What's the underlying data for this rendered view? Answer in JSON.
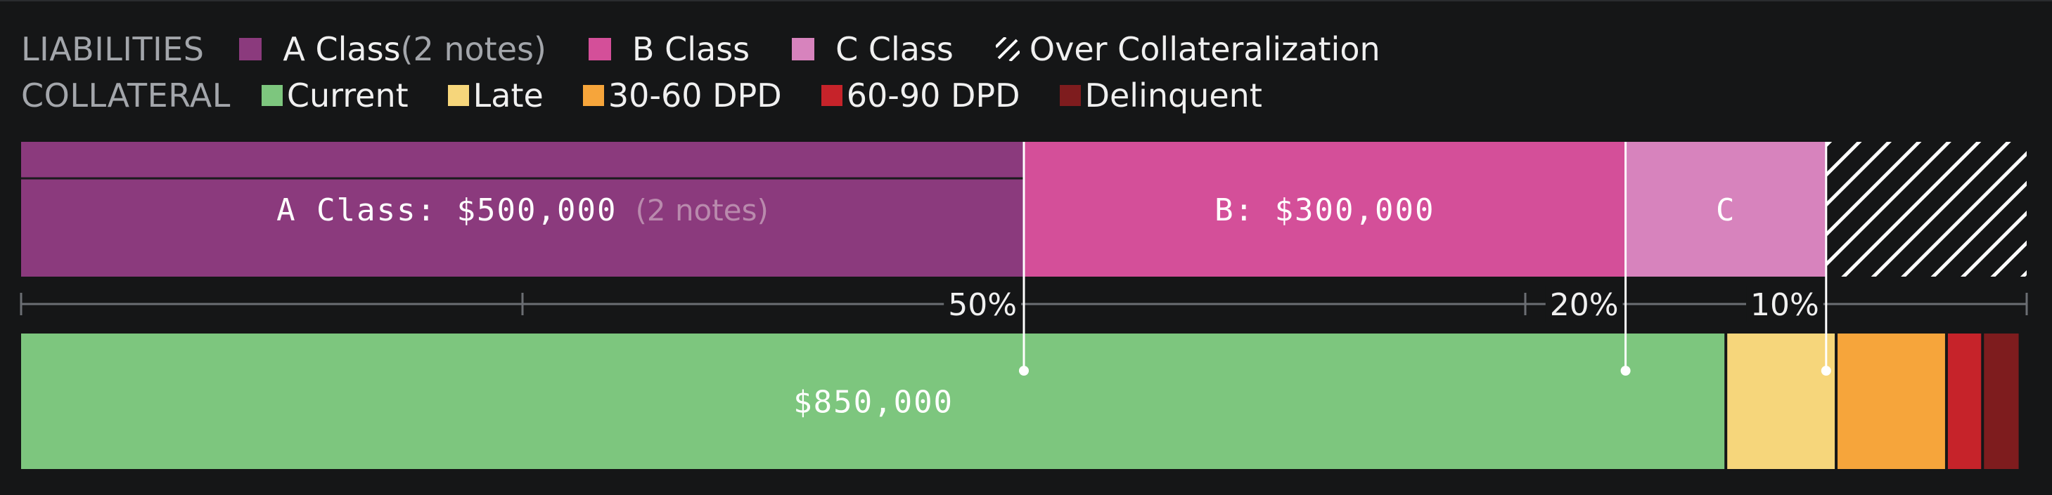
{
  "legend": {
    "liabilities_title": "LIABILITIES",
    "collateral_title": "COLLATERAL",
    "liabilities": [
      {
        "label": "A Class",
        "suffix": " (2 notes)",
        "color": "#8b3a7d"
      },
      {
        "label": "B Class",
        "suffix": "",
        "color": "#d44f99"
      },
      {
        "label": "C Class",
        "suffix": "",
        "color": "#d783bd"
      },
      {
        "label": "Over Collateralization",
        "suffix": "",
        "color": "hatch"
      }
    ],
    "collateral": [
      {
        "label": "Current",
        "color": "#7dc67e"
      },
      {
        "label": "Late",
        "color": "#f6d67b"
      },
      {
        "label": "30-60 DPD",
        "color": "#f6a53b"
      },
      {
        "label": "60-90 DPD",
        "color": "#c6232a"
      },
      {
        "label": "Delinquent",
        "color": "#7e1c1e"
      }
    ]
  },
  "chart_data": {
    "type": "bar",
    "orientation": "horizontal-stacked",
    "total_scale": 1000000,
    "liabilities": [
      {
        "name": "A Class",
        "value": 500000,
        "label": "A Class: $500,000",
        "note": "(2 notes)",
        "notes": 2,
        "color": "#8b3a7d"
      },
      {
        "name": "B Class",
        "value": 300000,
        "label": "B: $300,000",
        "color": "#d44f99"
      },
      {
        "name": "C Class",
        "value": 100000,
        "label": "C",
        "color": "#d783bd"
      },
      {
        "name": "Over Collateralization",
        "value": 100000,
        "label": "",
        "color": "hatch"
      }
    ],
    "collateral": [
      {
        "name": "Current",
        "value": 850000,
        "label": "$850,000",
        "color": "#7dc67e"
      },
      {
        "name": "Late",
        "value": 55000,
        "color": "#f6d67b"
      },
      {
        "name": "30-60 DPD",
        "value": 55000,
        "color": "#f6a53b"
      },
      {
        "name": "60-90 DPD",
        "value": 18000,
        "color": "#c6232a"
      },
      {
        "name": "Delinquent",
        "value": 18000,
        "color": "#7e1c1e"
      }
    ],
    "scale_ticks": [
      0,
      250000,
      500000,
      750000,
      1000000
    ],
    "tranche_percent_labels": [
      {
        "label": "50%",
        "at": 500000
      },
      {
        "label": "20%",
        "at": 800000
      },
      {
        "label": "10%",
        "at": 900000
      }
    ]
  }
}
